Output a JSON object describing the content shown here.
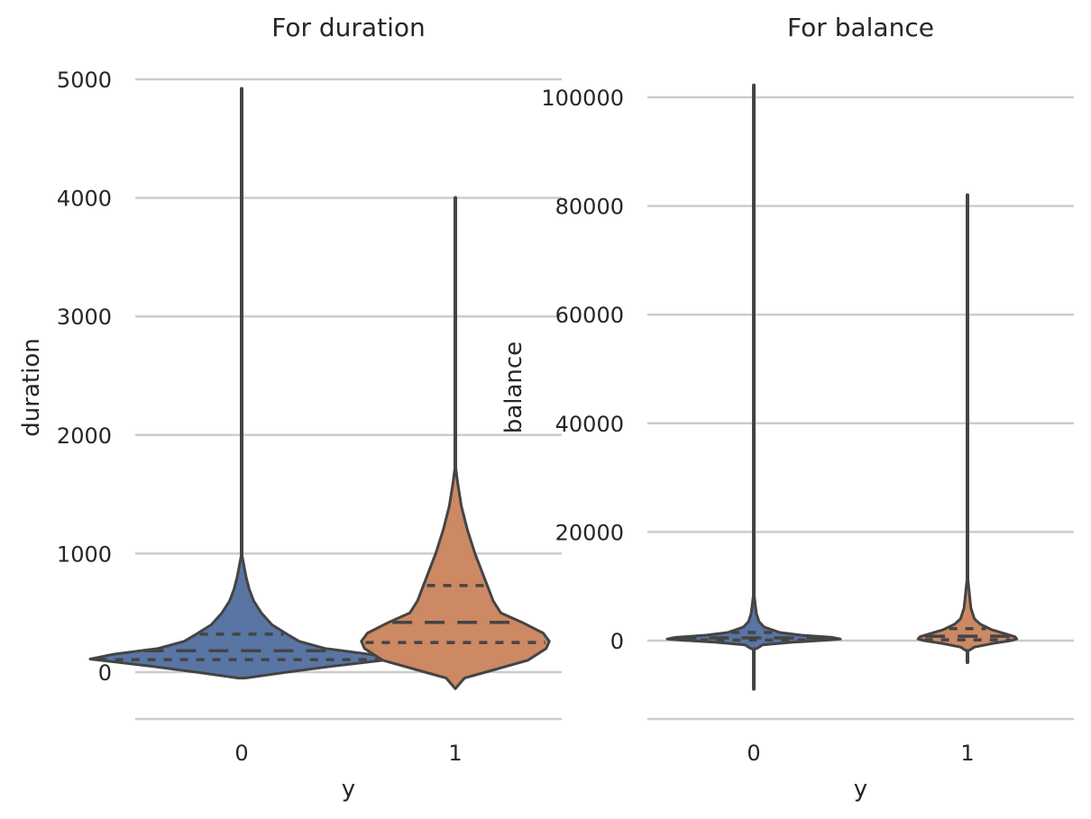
{
  "figure": {
    "colors": {
      "class_0": "#5975a4",
      "class_1": "#cc8963",
      "line": "#444444",
      "grid": "#cccccc"
    }
  },
  "chart_data": [
    {
      "type": "violin",
      "title": "For duration",
      "xlabel": "y",
      "ylabel": "duration",
      "categories": [
        "0",
        "1"
      ],
      "yticks": [
        0,
        1000,
        2000,
        3000,
        4000,
        5000
      ],
      "ytick_labels": [
        "0",
        "1000",
        "2000",
        "3000",
        "4000",
        "5000"
      ],
      "ylim": [
        -400,
        5000
      ],
      "grid": true,
      "series": [
        {
          "category": "0",
          "color": "#5975a4",
          "min": 0,
          "max": 4920,
          "q1": 105,
          "median": 180,
          "q3": 320,
          "fill_min": -50,
          "fill_max": 1000,
          "widest_at": 110,
          "profile": [
            [
              -50,
              0.02
            ],
            [
              0,
              0.3
            ],
            [
              50,
              0.6
            ],
            [
              110,
              1.0
            ],
            [
              150,
              0.85
            ],
            [
              200,
              0.55
            ],
            [
              260,
              0.38
            ],
            [
              320,
              0.3
            ],
            [
              400,
              0.2
            ],
            [
              500,
              0.13
            ],
            [
              600,
              0.08
            ],
            [
              700,
              0.05
            ],
            [
              800,
              0.03
            ],
            [
              900,
              0.015
            ],
            [
              1000,
              0.0
            ]
          ]
        },
        {
          "category": "1",
          "color": "#cc8963",
          "min": 0,
          "max": 4000,
          "q1": 250,
          "median": 420,
          "q3": 730,
          "fill_min": -140,
          "fill_max": 1750,
          "widest_at": 250,
          "profile": [
            [
              -140,
              0.0
            ],
            [
              -50,
              0.06
            ],
            [
              0,
              0.2
            ],
            [
              100,
              0.48
            ],
            [
              200,
              0.6
            ],
            [
              260,
              0.62
            ],
            [
              330,
              0.58
            ],
            [
              420,
              0.44
            ],
            [
              500,
              0.3
            ],
            [
              600,
              0.25
            ],
            [
              700,
              0.22
            ],
            [
              800,
              0.19
            ],
            [
              900,
              0.16
            ],
            [
              1000,
              0.13
            ],
            [
              1200,
              0.08
            ],
            [
              1400,
              0.04
            ],
            [
              1600,
              0.015
            ],
            [
              1750,
              0.0
            ]
          ]
        }
      ]
    },
    {
      "type": "violin",
      "title": "For balance",
      "xlabel": "y",
      "ylabel": "balance",
      "categories": [
        "0",
        "1"
      ],
      "yticks": [
        0,
        20000,
        40000,
        60000,
        80000,
        100000
      ],
      "ytick_labels": [
        "0",
        "20000",
        "40000",
        "60000",
        "80000",
        "100000"
      ],
      "ylim": [
        -14000,
        105000
      ],
      "grid": true,
      "series": [
        {
          "category": "0",
          "color": "#5975a4",
          "min": -8900,
          "max": 102200,
          "q1": 100,
          "median": 500,
          "q3": 1500,
          "fill_min": -1500,
          "fill_max": 9000,
          "widest_at": 300,
          "profile": [
            [
              -1500,
              0.03
            ],
            [
              -800,
              0.1
            ],
            [
              -300,
              0.45
            ],
            [
              100,
              0.85
            ],
            [
              300,
              1.0
            ],
            [
              600,
              0.9
            ],
            [
              1000,
              0.55
            ],
            [
              1500,
              0.3
            ],
            [
              2500,
              0.12
            ],
            [
              3500,
              0.06
            ],
            [
              5000,
              0.03
            ],
            [
              7000,
              0.015
            ],
            [
              9000,
              0.0
            ]
          ]
        },
        {
          "category": "1",
          "color": "#cc8963",
          "min": -4000,
          "max": 82000,
          "q1": 150,
          "median": 800,
          "q3": 2200,
          "fill_min": -1800,
          "fill_max": 12000,
          "widest_at": 300,
          "profile": [
            [
              -1800,
              0.02
            ],
            [
              -1200,
              0.08
            ],
            [
              -500,
              0.3
            ],
            [
              0,
              0.5
            ],
            [
              300,
              0.57
            ],
            [
              700,
              0.55
            ],
            [
              1200,
              0.45
            ],
            [
              2000,
              0.28
            ],
            [
              3000,
              0.15
            ],
            [
              4000,
              0.08
            ],
            [
              6000,
              0.04
            ],
            [
              9000,
              0.02
            ],
            [
              12000,
              0.0
            ]
          ]
        }
      ]
    }
  ]
}
